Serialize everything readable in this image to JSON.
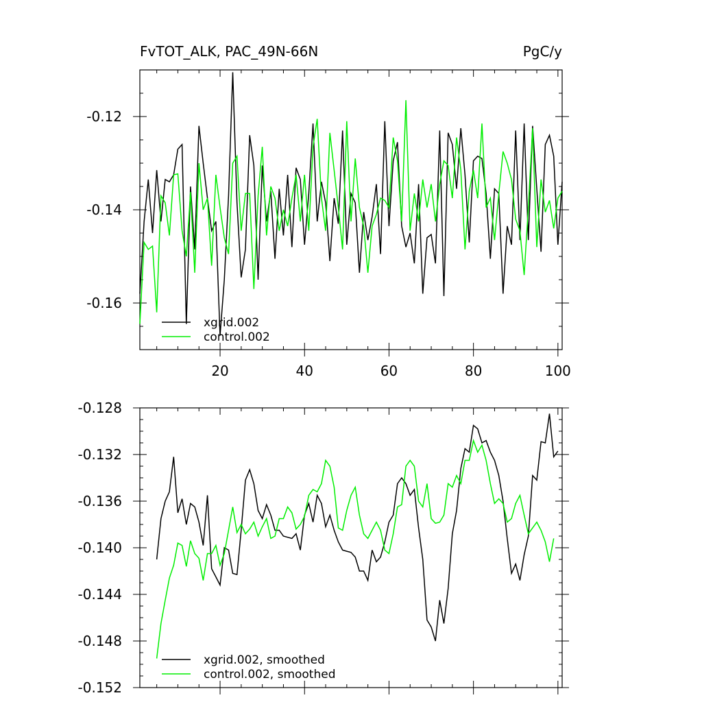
{
  "chart_data": [
    {
      "type": "line",
      "title_left": "FvTOT_ALK, PAC_49N-66N",
      "title_right": "PgC/y",
      "xlim": [
        1,
        101
      ],
      "ylim": [
        -0.17,
        -0.11
      ],
      "x_ticks": [
        20,
        40,
        60,
        80,
        100
      ],
      "x_tick_labels": [
        "20",
        "40",
        "60",
        "80",
        "100"
      ],
      "y_ticks": [
        -0.16,
        -0.14,
        -0.12
      ],
      "y_tick_labels": [
        "-0.16",
        "-0.14",
        "-0.12"
      ],
      "legend": "bottom-left",
      "series": [
        {
          "name": "xgrid.002",
          "color": "#000000",
          "x_start": 1,
          "values": [
            -0.158,
            -0.1425,
            -0.1335,
            -0.145,
            -0.1315,
            -0.1425,
            -0.1335,
            -0.134,
            -0.1325,
            -0.127,
            -0.126,
            -0.1645,
            -0.135,
            -0.1485,
            -0.122,
            -0.13,
            -0.1375,
            -0.1445,
            -0.1425,
            -0.167,
            -0.155,
            -0.137,
            -0.1105,
            -0.1385,
            -0.1545,
            -0.1485,
            -0.124,
            -0.1305,
            -0.155,
            -0.1305,
            -0.1425,
            -0.136,
            -0.1505,
            -0.1355,
            -0.1455,
            -0.1325,
            -0.148,
            -0.131,
            -0.1335,
            -0.1475,
            -0.1365,
            -0.1215,
            -0.1425,
            -0.134,
            -0.1385,
            -0.151,
            -0.1375,
            -0.143,
            -0.123,
            -0.1475,
            -0.1365,
            -0.1385,
            -0.1535,
            -0.1405,
            -0.1465,
            -0.1415,
            -0.1345,
            -0.1495,
            -0.121,
            -0.1435,
            -0.1295,
            -0.1255,
            -0.1435,
            -0.148,
            -0.145,
            -0.1515,
            -0.1345,
            -0.158,
            -0.146,
            -0.1453,
            -0.1515,
            -0.123,
            -0.1585,
            -0.1235,
            -0.126,
            -0.1355,
            -0.1225,
            -0.1325,
            -0.147,
            -0.1295,
            -0.1285,
            -0.129,
            -0.1365,
            -0.1505,
            -0.1355,
            -0.1365,
            -0.158,
            -0.1435,
            -0.1475,
            -0.123,
            -0.1465,
            -0.1215,
            -0.1465,
            -0.122,
            -0.1355,
            -0.149,
            -0.126,
            -0.124,
            -0.1285,
            -0.1475,
            -0.134
          ]
        },
        {
          "name": "control.002",
          "color": "#00ee00",
          "x_start": 1,
          "values": [
            -0.1645,
            -0.147,
            -0.1485,
            -0.1478,
            -0.162,
            -0.137,
            -0.1385,
            -0.1455,
            -0.1325,
            -0.1323,
            -0.1445,
            -0.15,
            -0.1362,
            -0.1535,
            -0.13,
            -0.14,
            -0.1375,
            -0.152,
            -0.1325,
            -0.1395,
            -0.146,
            -0.1495,
            -0.13,
            -0.1285,
            -0.1445,
            -0.1365,
            -0.1365,
            -0.157,
            -0.137,
            -0.1265,
            -0.1455,
            -0.135,
            -0.1375,
            -0.1445,
            -0.14,
            -0.1435,
            -0.1375,
            -0.1325,
            -0.1425,
            -0.1325,
            -0.1445,
            -0.1265,
            -0.1205,
            -0.1375,
            -0.1445,
            -0.1235,
            -0.1315,
            -0.1395,
            -0.1485,
            -0.121,
            -0.1425,
            -0.129,
            -0.1395,
            -0.1435,
            -0.1535,
            -0.1435,
            -0.141,
            -0.1375,
            -0.138,
            -0.1395,
            -0.1245,
            -0.1295,
            -0.1425,
            -0.1165,
            -0.1445,
            -0.1365,
            -0.1425,
            -0.1335,
            -0.1395,
            -0.1345,
            -0.1425,
            -0.1345,
            -0.1295,
            -0.1305,
            -0.1375,
            -0.1245,
            -0.1315,
            -0.1485,
            -0.136,
            -0.1315,
            -0.1375,
            -0.1215,
            -0.1395,
            -0.1375,
            -0.1465,
            -0.1365,
            -0.1275,
            -0.13,
            -0.1335,
            -0.142,
            -0.1445,
            -0.154,
            -0.1395,
            -0.1225,
            -0.148,
            -0.1335,
            -0.1405,
            -0.138,
            -0.144,
            -0.1375,
            -0.136
          ]
        }
      ]
    },
    {
      "type": "line",
      "xlim": [
        1,
        101
      ],
      "ylim": [
        -0.152,
        -0.128
      ],
      "x_ticks": [
        20,
        40,
        60,
        80,
        100
      ],
      "y_ticks": [
        -0.152,
        -0.148,
        -0.144,
        -0.14,
        -0.136,
        -0.132,
        -0.128
      ],
      "y_tick_labels": [
        "-0.152",
        "-0.148",
        "-0.144",
        "-0.140",
        "-0.136",
        "-0.132",
        "-0.128"
      ],
      "legend": "bottom-left",
      "series": [
        {
          "name": "xgrid.002, smoothed",
          "color": "#000000",
          "x_start": 5,
          "values": [
            -0.141,
            -0.1375,
            -0.136,
            -0.1352,
            -0.1322,
            -0.137,
            -0.1358,
            -0.138,
            -0.1362,
            -0.1365,
            -0.1378,
            -0.1398,
            -0.1355,
            -0.1418,
            -0.1425,
            -0.1432,
            -0.14,
            -0.1402,
            -0.1422,
            -0.1423,
            -0.1385,
            -0.1342,
            -0.1333,
            -0.1345,
            -0.1368,
            -0.1375,
            -0.1363,
            -0.1372,
            -0.1385,
            -0.1385,
            -0.139,
            -0.1391,
            -0.1392,
            -0.1388,
            -0.1402,
            -0.1372,
            -0.1362,
            -0.1378,
            -0.1355,
            -0.1362,
            -0.1382,
            -0.1372,
            -0.1385,
            -0.1395,
            -0.1402,
            -0.1403,
            -0.1404,
            -0.1408,
            -0.142,
            -0.142,
            -0.1428,
            -0.1402,
            -0.1412,
            -0.1408,
            -0.1395,
            -0.1378,
            -0.1372,
            -0.1345,
            -0.134,
            -0.1345,
            -0.1355,
            -0.135,
            -0.1383,
            -0.141,
            -0.1462,
            -0.1468,
            -0.148,
            -0.1445,
            -0.1465,
            -0.1435,
            -0.1388,
            -0.1368,
            -0.1332,
            -0.1315,
            -0.1318,
            -0.1295,
            -0.1298,
            -0.131,
            -0.1308,
            -0.1318,
            -0.1325,
            -0.1338,
            -0.136,
            -0.1392,
            -0.1422,
            -0.1414,
            -0.1428,
            -0.1406,
            -0.139,
            -0.1338,
            -0.1342,
            -0.1309,
            -0.131,
            -0.1285,
            -0.1322,
            -0.1317
          ]
        },
        {
          "name": "control.002, smoothed",
          "color": "#00ee00",
          "x_start": 5,
          "values": [
            -0.1495,
            -0.1465,
            -0.1445,
            -0.1426,
            -0.1415,
            -0.1396,
            -0.1398,
            -0.1416,
            -0.1394,
            -0.1405,
            -0.1409,
            -0.1428,
            -0.1405,
            -0.1405,
            -0.1398,
            -0.1415,
            -0.1405,
            -0.1385,
            -0.1365,
            -0.1387,
            -0.138,
            -0.1388,
            -0.1384,
            -0.1378,
            -0.139,
            -0.1382,
            -0.1375,
            -0.1392,
            -0.139,
            -0.1375,
            -0.1375,
            -0.1365,
            -0.137,
            -0.1384,
            -0.138,
            -0.1373,
            -0.1355,
            -0.135,
            -0.1352,
            -0.1345,
            -0.1325,
            -0.133,
            -0.1348,
            -0.1383,
            -0.1385,
            -0.1368,
            -0.1355,
            -0.1348,
            -0.1372,
            -0.1388,
            -0.1392,
            -0.1385,
            -0.1378,
            -0.1385,
            -0.1402,
            -0.1405,
            -0.1388,
            -0.1365,
            -0.1363,
            -0.133,
            -0.1325,
            -0.133,
            -0.136,
            -0.1365,
            -0.1345,
            -0.1375,
            -0.1379,
            -0.1378,
            -0.1372,
            -0.1345,
            -0.1348,
            -0.1338,
            -0.1345,
            -0.1325,
            -0.1325,
            -0.1308,
            -0.1318,
            -0.1312,
            -0.1325,
            -0.1345,
            -0.1362,
            -0.1358,
            -0.1362,
            -0.1378,
            -0.1375,
            -0.1362,
            -0.1355,
            -0.1372,
            -0.1388,
            -0.1383,
            -0.1378,
            -0.1385,
            -0.1395,
            -0.1412,
            -0.1392
          ]
        }
      ]
    }
  ]
}
